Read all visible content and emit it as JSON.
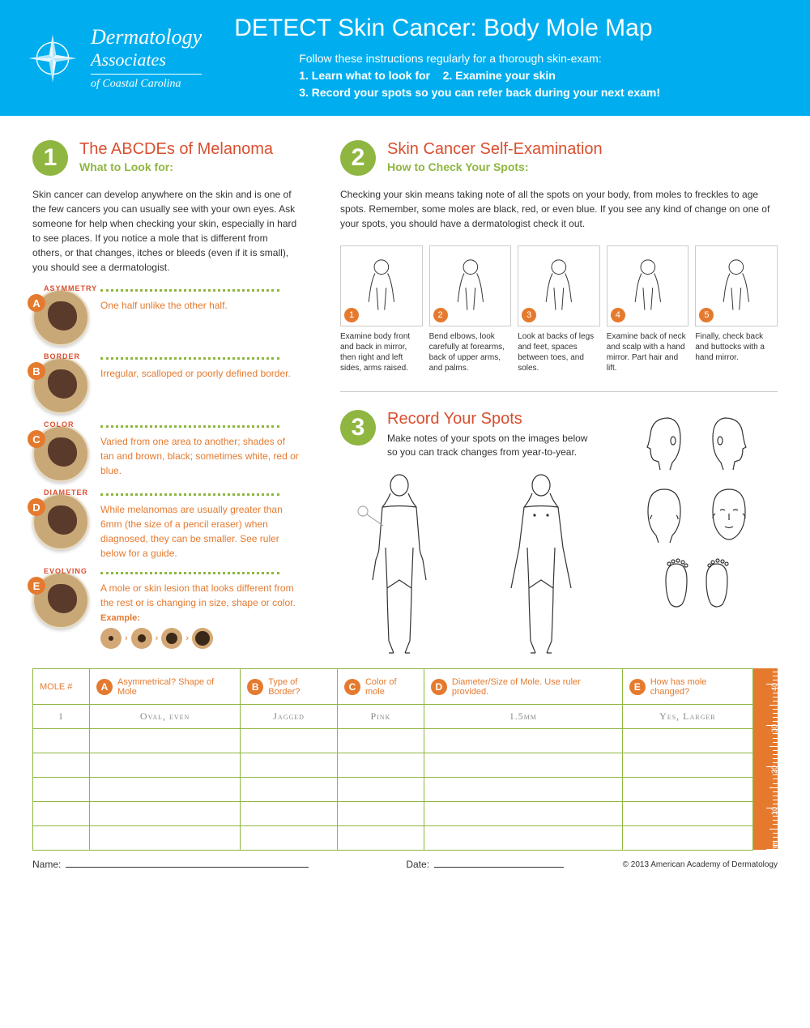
{
  "header": {
    "logo": {
      "line1": "Dermatology",
      "line2": "Associates",
      "line3": "of Coastal Carolina"
    },
    "title": "DETECT Skin Cancer: Body Mole Map",
    "subtitle_intro": "Follow these instructions regularly for a thorough skin-exam:",
    "steps": [
      "1. Learn what to look for",
      "2. Examine your skin",
      "3. Record your spots so you can refer back during your next exam!"
    ]
  },
  "section1": {
    "num": "1",
    "title": "The ABCDEs of Melanoma",
    "subtitle": "What to Look for:",
    "intro": "Skin cancer can develop anywhere on the skin and is one of the few cancers you can usually see with your own eyes. Ask someone for help when checking your skin, especially in hard to see places. If you notice a  mole that is different from others, or that changes, itches or bleeds (even if it is small), you should see a dermatologist.",
    "items": [
      {
        "letter": "A",
        "label": "ASYMMETRY",
        "desc": "One half unlike the other half."
      },
      {
        "letter": "B",
        "label": "BORDER",
        "desc": "Irregular, scalloped or poorly defined border."
      },
      {
        "letter": "C",
        "label": "COLOR",
        "desc": "Varied from one area to another; shades of tan and brown, black; sometimes white, red or blue."
      },
      {
        "letter": "D",
        "label": "DIAMETER",
        "desc": "While melanomas are usually greater than 6mm (the size of a pencil eraser) when diagnosed, they can be smaller. See ruler below for a guide."
      },
      {
        "letter": "E",
        "label": "EVOLVING",
        "desc": "A mole or skin lesion that looks different from the rest or is changing in size, shape or color."
      }
    ],
    "example_label": "Example:"
  },
  "section2": {
    "num": "2",
    "title": "Skin Cancer Self-Examination",
    "subtitle": "How to Check Your Spots:",
    "intro": "Checking your skin means taking note of all the spots on your body, from moles to freckles to age spots. Remember, some moles are black, red, or even blue. If you see any kind of change on one of your spots, you should have a dermatologist check it out.",
    "steps": [
      {
        "n": "1",
        "cap": "Examine body front and back in mirror, then right and left sides, arms raised."
      },
      {
        "n": "2",
        "cap": "Bend elbows, look carefully at forearms, back of upper arms, and palms."
      },
      {
        "n": "3",
        "cap": "Look at backs of legs and feet, spaces between toes, and soles."
      },
      {
        "n": "4",
        "cap": "Examine back of neck and scalp with a hand mirror. Part hair and lift."
      },
      {
        "n": "5",
        "cap": "Finally, check back and buttocks with a hand mirror."
      }
    ]
  },
  "section3": {
    "num": "3",
    "title": "Record Your Spots",
    "subtitle": "Make notes of your spots on the images below so you can track changes from year-to-year."
  },
  "table": {
    "headers": {
      "mole": "MOLE #",
      "a": "Asymmetrical? Shape of Mole",
      "b": "Type of Border?",
      "c": "Color of mole",
      "d": "Diameter/Size of Mole. Use ruler provided.",
      "e": "How has mole changed?"
    },
    "sample": {
      "n": "1",
      "a": "Oval, even",
      "b": "Jagged",
      "c": "Pink",
      "d": "1.5mm",
      "e": "Yes, Larger"
    },
    "ruler_unit": "mm",
    "ruler_marks": [
      "10",
      "20",
      "30",
      "40"
    ]
  },
  "footer": {
    "name": "Name:",
    "date": "Date:",
    "copyright": "© 2013 American Academy of Dermatology"
  },
  "colors": {
    "blue": "#00aeef",
    "green": "#8fb641",
    "orange": "#e57a2f",
    "red": "#d94f2f"
  }
}
